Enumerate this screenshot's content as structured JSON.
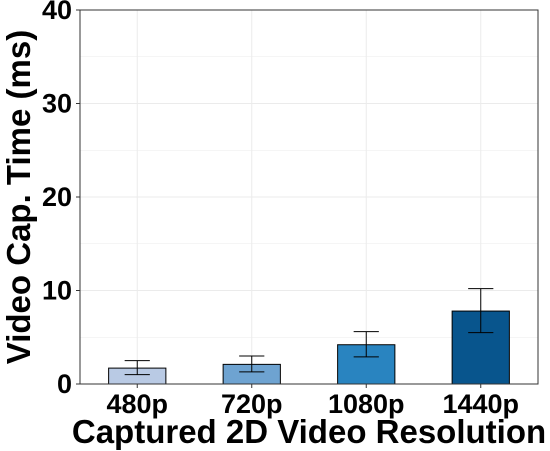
{
  "chart_data": {
    "type": "bar",
    "title": "",
    "xlabel": "Captured 2D Video Resolution",
    "ylabel": "Video Cap. Time (ms)",
    "categories": [
      "480p",
      "720p",
      "1080p",
      "1440p"
    ],
    "values": [
      1.7,
      2.1,
      4.2,
      7.8
    ],
    "error_low": [
      1.0,
      1.3,
      2.9,
      5.5
    ],
    "error_high": [
      2.5,
      3.0,
      5.6,
      10.2
    ],
    "bar_colors": [
      "#b9cae4",
      "#6ea3d1",
      "#2984c0",
      "#08558d"
    ],
    "ylim": [
      0,
      40
    ],
    "yticks": [
      "0",
      "10",
      "20",
      "30",
      "40"
    ],
    "grid": true,
    "legend": "none"
  }
}
